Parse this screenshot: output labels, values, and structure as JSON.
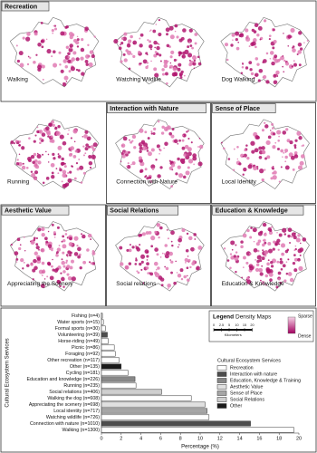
{
  "panels": [
    {
      "title": "Recreation",
      "label": "Walking"
    },
    {
      "label": "Watching Wildlife"
    },
    {
      "label": "Dog Walking"
    },
    {
      "label": "Running"
    },
    {
      "title": "Interaction with Nature",
      "label": "Connection with Nature"
    },
    {
      "title": "Sense of Place",
      "label": "Local Identity"
    },
    {
      "title": "Aesthetic Value",
      "label": "Appreciating the Scenery"
    },
    {
      "title": "Social Relations",
      "label": "Social relations"
    },
    {
      "title": "Education & Knowledge",
      "label": "Education & Knowledge"
    }
  ],
  "density_legend": {
    "title": "Legend",
    "subtitle": "Density Maps",
    "scale": [
      "0",
      "2.5",
      "5",
      "10",
      "15",
      "20"
    ],
    "unit": "Kilometers",
    "low": "Sparse",
    "high": "Dense"
  },
  "chart_data": {
    "type": "bar",
    "orientation": "horizontal",
    "xlabel": "Percentage (%)",
    "ylabel": "Cultural Ecosystem Services",
    "categories": [
      "Fishing (n=4)",
      "Water sports (n=15)",
      "Formal sports (n=30)",
      "Volunteering (n=39)",
      "Horse-riding (n=49)",
      "Picnic (n=86)",
      "Foraging (n=92)",
      "Other recreation (n=117)",
      "Other (n=135)",
      "Cycling (n=181)",
      "Education and knowledge (n=226)",
      "Running (n=235)",
      "Social relations (n=406)",
      "Walking the dog (n=608)",
      "Appreciating the scenery (n=698)",
      "Local identity (n=717)",
      "Watching wildlife (n=726)",
      "Connection with nature (n=1010)",
      "Walking (n=1300)"
    ],
    "values": [
      0.1,
      0.2,
      0.4,
      0.6,
      0.7,
      1.3,
      1.4,
      1.8,
      2.0,
      2.7,
      3.4,
      3.5,
      6.1,
      9.1,
      10.5,
      10.7,
      10.9,
      15.1,
      19.5
    ],
    "colors": [
      "#ffffff",
      "#ffffff",
      "#ffffff",
      "#4d4d4d",
      "#ffffff",
      "#ffffff",
      "#ffffff",
      "#ffffff",
      "#1a1a1a",
      "#ffffff",
      "#888888",
      "#ffffff",
      "#cfcfcf",
      "#ffffff",
      "#e0e0e0",
      "#a6a6a6",
      "#ffffff",
      "#4d4d4d",
      "#ffffff"
    ],
    "xlim": [
      0,
      20
    ],
    "xticks": [
      0,
      2,
      4,
      6,
      8,
      10,
      12,
      14,
      16,
      18,
      20
    ],
    "legend": {
      "title": "Cultural Ecosystem Services",
      "items": [
        {
          "name": "Recreation",
          "color": "#ffffff"
        },
        {
          "name": "Interaction with nature",
          "color": "#4d4d4d"
        },
        {
          "name": "Education, Knowledge & Training",
          "color": "#888888"
        },
        {
          "name": "Aesthetic Value",
          "color": "#e0e0e0"
        },
        {
          "name": "Sense of Place",
          "color": "#a6a6a6"
        },
        {
          "name": "Social Relations",
          "color": "#cfcfcf"
        },
        {
          "name": "Other",
          "color": "#1a1a1a"
        }
      ]
    }
  }
}
